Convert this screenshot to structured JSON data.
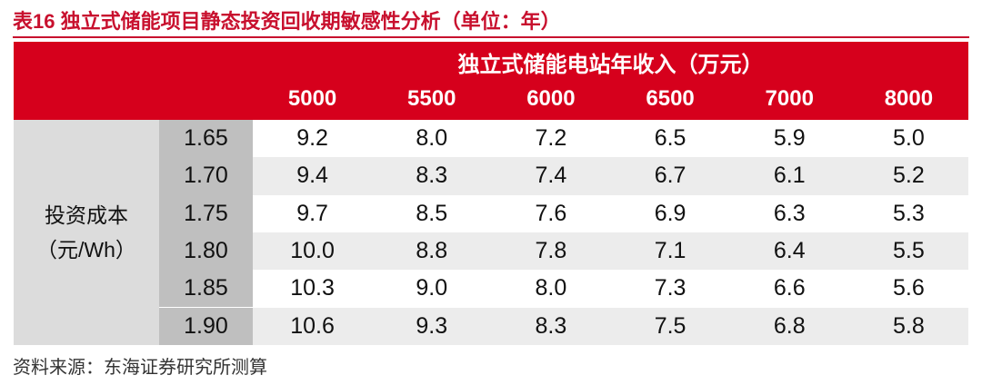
{
  "title": "表16  独立式储能项目静态投资回收期敏感性分析（单位：年）",
  "table": {
    "column_group": "独立式储能电站年收入（万元）",
    "columns": [
      "5000",
      "5500",
      "6000",
      "6500",
      "7000",
      "8000"
    ],
    "row_group": [
      "投资成本",
      "（元/Wh）"
    ],
    "rows": [
      {
        "label": "1.65",
        "values": [
          "9.2",
          "8.0",
          "7.2",
          "6.5",
          "5.9",
          "5.0"
        ]
      },
      {
        "label": "1.70",
        "values": [
          "9.4",
          "8.3",
          "7.4",
          "6.7",
          "6.1",
          "5.2"
        ]
      },
      {
        "label": "1.75",
        "values": [
          "9.7",
          "8.5",
          "7.6",
          "6.9",
          "6.3",
          "5.3"
        ]
      },
      {
        "label": "1.80",
        "values": [
          "10.0",
          "8.8",
          "7.8",
          "7.1",
          "6.4",
          "5.5"
        ]
      },
      {
        "label": "1.85",
        "values": [
          "10.3",
          "9.0",
          "8.0",
          "7.3",
          "6.6",
          "5.6"
        ]
      },
      {
        "label": "1.90",
        "values": [
          "10.6",
          "9.3",
          "8.3",
          "7.5",
          "6.8",
          "5.8"
        ]
      }
    ]
  },
  "source": "资料来源：东海证券研究所测算"
}
